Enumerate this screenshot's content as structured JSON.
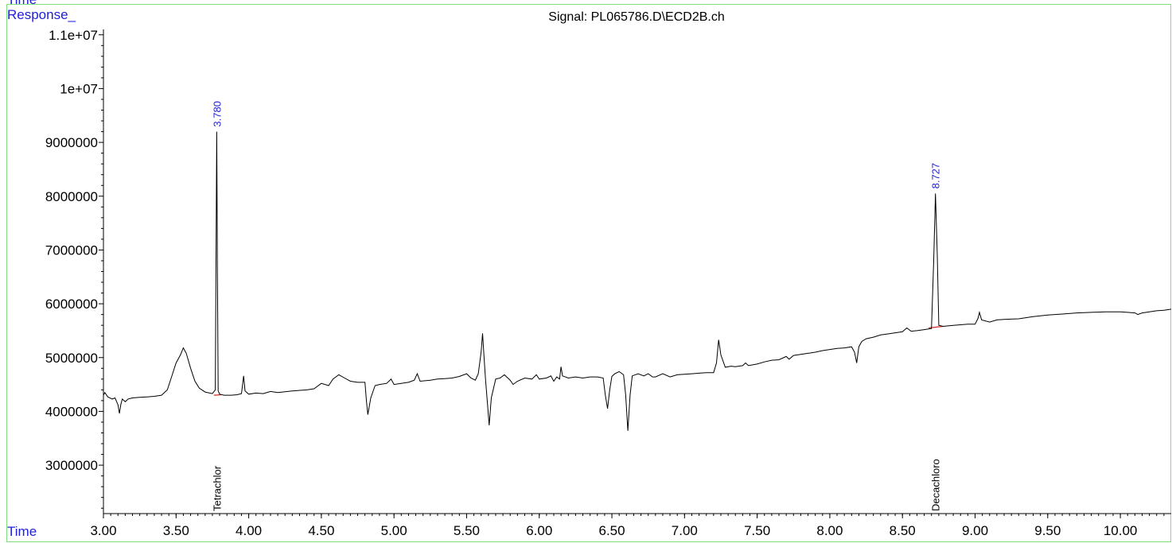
{
  "header": {
    "corner_label": "Time",
    "response_label": "Response_",
    "time_label": "Time"
  },
  "chart_data": {
    "type": "line",
    "title": "Signal: PL065786.D\\ECD2B.ch",
    "xlabel": "Time",
    "ylabel": "Response_",
    "xlim": [
      3.0,
      10.35
    ],
    "ylim": [
      2100000,
      11100000
    ],
    "x_ticks": [
      3.0,
      3.5,
      4.0,
      4.5,
      5.0,
      5.5,
      6.0,
      6.5,
      7.0,
      7.5,
      8.0,
      8.5,
      9.0,
      9.5,
      10.0
    ],
    "x_tick_labels": [
      "3.00",
      "3.50",
      "4.00",
      "4.50",
      "5.00",
      "5.50",
      "6.00",
      "6.50",
      "7.00",
      "7.50",
      "8.00",
      "8.50",
      "9.00",
      "9.50",
      "10.00"
    ],
    "y_ticks": [
      3000000,
      4000000,
      5000000,
      6000000,
      7000000,
      8000000,
      9000000,
      10000000,
      11000000
    ],
    "y_tick_labels": [
      "3000000",
      "4000000",
      "5000000",
      "6000000",
      "7000000",
      "8000000",
      "9000000",
      "1e+07",
      "1.1e+07"
    ],
    "grid": false,
    "series": [
      {
        "color": "#000000",
        "points": [
          [
            3.0,
            4300000
          ],
          [
            3.01,
            4350000
          ],
          [
            3.03,
            4270000
          ],
          [
            3.06,
            4230000
          ],
          [
            3.08,
            4250000
          ],
          [
            3.1,
            4120000
          ],
          [
            3.11,
            3960000
          ],
          [
            3.12,
            4130000
          ],
          [
            3.13,
            4230000
          ],
          [
            3.15,
            4180000
          ],
          [
            3.17,
            4230000
          ],
          [
            3.2,
            4250000
          ],
          [
            3.25,
            4260000
          ],
          [
            3.3,
            4270000
          ],
          [
            3.35,
            4280000
          ],
          [
            3.4,
            4300000
          ],
          [
            3.44,
            4400000
          ],
          [
            3.47,
            4650000
          ],
          [
            3.5,
            4900000
          ],
          [
            3.53,
            5050000
          ],
          [
            3.55,
            5180000
          ],
          [
            3.57,
            5080000
          ],
          [
            3.6,
            4800000
          ],
          [
            3.63,
            4560000
          ],
          [
            3.66,
            4430000
          ],
          [
            3.7,
            4360000
          ],
          [
            3.75,
            4330000
          ],
          [
            3.77,
            4400000
          ],
          [
            3.775,
            6800000
          ],
          [
            3.78,
            9200000
          ],
          [
            3.785,
            6500000
          ],
          [
            3.79,
            4380000
          ],
          [
            3.8,
            4320000
          ],
          [
            3.83,
            4300000
          ],
          [
            3.88,
            4300000
          ],
          [
            3.92,
            4310000
          ],
          [
            3.95,
            4330000
          ],
          [
            3.965,
            4660000
          ],
          [
            3.975,
            4380000
          ],
          [
            4.0,
            4320000
          ],
          [
            4.05,
            4340000
          ],
          [
            4.1,
            4330000
          ],
          [
            4.15,
            4370000
          ],
          [
            4.2,
            4350000
          ],
          [
            4.3,
            4380000
          ],
          [
            4.4,
            4400000
          ],
          [
            4.45,
            4420000
          ],
          [
            4.5,
            4520000
          ],
          [
            4.55,
            4480000
          ],
          [
            4.58,
            4600000
          ],
          [
            4.62,
            4680000
          ],
          [
            4.66,
            4620000
          ],
          [
            4.7,
            4560000
          ],
          [
            4.75,
            4540000
          ],
          [
            4.8,
            4540000
          ],
          [
            4.81,
            4200000
          ],
          [
            4.82,
            3940000
          ],
          [
            4.84,
            4250000
          ],
          [
            4.87,
            4480000
          ],
          [
            4.9,
            4500000
          ],
          [
            4.95,
            4520000
          ],
          [
            4.98,
            4600000
          ],
          [
            5.0,
            4500000
          ],
          [
            5.05,
            4520000
          ],
          [
            5.1,
            4540000
          ],
          [
            5.14,
            4580000
          ],
          [
            5.16,
            4700000
          ],
          [
            5.18,
            4560000
          ],
          [
            5.25,
            4580000
          ],
          [
            5.3,
            4600000
          ],
          [
            5.35,
            4610000
          ],
          [
            5.4,
            4620000
          ],
          [
            5.45,
            4650000
          ],
          [
            5.5,
            4700000
          ],
          [
            5.53,
            4620000
          ],
          [
            5.56,
            4580000
          ],
          [
            5.58,
            4700000
          ],
          [
            5.6,
            5100000
          ],
          [
            5.61,
            5450000
          ],
          [
            5.62,
            5000000
          ],
          [
            5.63,
            4600000
          ],
          [
            5.645,
            4100000
          ],
          [
            5.655,
            3740000
          ],
          [
            5.67,
            4250000
          ],
          [
            5.7,
            4600000
          ],
          [
            5.73,
            4620000
          ],
          [
            5.76,
            4680000
          ],
          [
            5.8,
            4580000
          ],
          [
            5.82,
            4500000
          ],
          [
            5.85,
            4560000
          ],
          [
            5.9,
            4620000
          ],
          [
            5.95,
            4600000
          ],
          [
            5.98,
            4680000
          ],
          [
            6.0,
            4600000
          ],
          [
            6.05,
            4620000
          ],
          [
            6.08,
            4660000
          ],
          [
            6.1,
            4560000
          ],
          [
            6.12,
            4640000
          ],
          [
            6.14,
            4600000
          ],
          [
            6.15,
            4830000
          ],
          [
            6.16,
            4660000
          ],
          [
            6.2,
            4620000
          ],
          [
            6.25,
            4640000
          ],
          [
            6.3,
            4620000
          ],
          [
            6.35,
            4640000
          ],
          [
            6.4,
            4640000
          ],
          [
            6.44,
            4620000
          ],
          [
            6.455,
            4300000
          ],
          [
            6.47,
            4050000
          ],
          [
            6.485,
            4400000
          ],
          [
            6.5,
            4650000
          ],
          [
            6.52,
            4700000
          ],
          [
            6.55,
            4740000
          ],
          [
            6.58,
            4680000
          ],
          [
            6.595,
            4300000
          ],
          [
            6.61,
            3640000
          ],
          [
            6.625,
            4300000
          ],
          [
            6.64,
            4660000
          ],
          [
            6.68,
            4700000
          ],
          [
            6.72,
            4660000
          ],
          [
            6.75,
            4700000
          ],
          [
            6.78,
            4640000
          ],
          [
            6.8,
            4640000
          ],
          [
            6.85,
            4700000
          ],
          [
            6.9,
            4640000
          ],
          [
            6.95,
            4680000
          ],
          [
            7.0,
            4690000
          ],
          [
            7.05,
            4700000
          ],
          [
            7.1,
            4710000
          ],
          [
            7.15,
            4720000
          ],
          [
            7.2,
            4720000
          ],
          [
            7.22,
            4900000
          ],
          [
            7.235,
            5330000
          ],
          [
            7.25,
            5050000
          ],
          [
            7.28,
            4820000
          ],
          [
            7.32,
            4840000
          ],
          [
            7.35,
            4830000
          ],
          [
            7.4,
            4850000
          ],
          [
            7.42,
            4900000
          ],
          [
            7.44,
            4850000
          ],
          [
            7.5,
            4880000
          ],
          [
            7.55,
            4920000
          ],
          [
            7.6,
            4950000
          ],
          [
            7.65,
            4960000
          ],
          [
            7.7,
            5020000
          ],
          [
            7.72,
            4970000
          ],
          [
            7.75,
            5040000
          ],
          [
            7.8,
            5060000
          ],
          [
            7.85,
            5080000
          ],
          [
            7.9,
            5100000
          ],
          [
            7.95,
            5130000
          ],
          [
            8.0,
            5150000
          ],
          [
            8.05,
            5170000
          ],
          [
            8.1,
            5180000
          ],
          [
            8.15,
            5200000
          ],
          [
            8.17,
            5100000
          ],
          [
            8.185,
            4900000
          ],
          [
            8.2,
            5200000
          ],
          [
            8.22,
            5300000
          ],
          [
            8.25,
            5350000
          ],
          [
            8.3,
            5380000
          ],
          [
            8.35,
            5420000
          ],
          [
            8.4,
            5440000
          ],
          [
            8.45,
            5460000
          ],
          [
            8.5,
            5480000
          ],
          [
            8.53,
            5550000
          ],
          [
            8.56,
            5490000
          ],
          [
            8.6,
            5500000
          ],
          [
            8.65,
            5520000
          ],
          [
            8.7,
            5540000
          ],
          [
            8.715,
            6800000
          ],
          [
            8.727,
            8050000
          ],
          [
            8.74,
            6900000
          ],
          [
            8.75,
            5600000
          ],
          [
            8.78,
            5580000
          ],
          [
            8.85,
            5600000
          ],
          [
            8.9,
            5610000
          ],
          [
            8.95,
            5620000
          ],
          [
            9.0,
            5620000
          ],
          [
            9.02,
            5730000
          ],
          [
            9.03,
            5840000
          ],
          [
            9.045,
            5700000
          ],
          [
            9.1,
            5660000
          ],
          [
            9.15,
            5700000
          ],
          [
            9.2,
            5710000
          ],
          [
            9.3,
            5720000
          ],
          [
            9.4,
            5760000
          ],
          [
            9.5,
            5790000
          ],
          [
            9.6,
            5810000
          ],
          [
            9.7,
            5830000
          ],
          [
            9.8,
            5840000
          ],
          [
            9.9,
            5850000
          ],
          [
            10.0,
            5850000
          ],
          [
            10.05,
            5840000
          ],
          [
            10.1,
            5830000
          ],
          [
            10.12,
            5800000
          ],
          [
            10.15,
            5830000
          ],
          [
            10.2,
            5850000
          ],
          [
            10.25,
            5870000
          ],
          [
            10.3,
            5880000
          ],
          [
            10.35,
            5900000
          ]
        ]
      }
    ],
    "baselines": [
      {
        "color": "#d62728",
        "points": [
          [
            3.76,
            4300000
          ],
          [
            3.81,
            4310000
          ]
        ]
      },
      {
        "color": "#d62728",
        "points": [
          [
            8.68,
            5550000
          ],
          [
            8.78,
            5580000
          ]
        ]
      }
    ],
    "peak_labels": [
      {
        "x": 3.78,
        "y": 9200000,
        "text": "3.780"
      },
      {
        "x": 8.727,
        "y": 8050000,
        "text": "8.727"
      }
    ],
    "compound_labels": [
      {
        "x": 3.78,
        "text": "Tetrachlor"
      },
      {
        "x": 8.727,
        "text": "Decachloro"
      }
    ],
    "colors": {
      "trace": "#000000",
      "peak_label": "#1f1fd8",
      "baseline": "#d62728",
      "frame": "#7fe07f"
    }
  }
}
